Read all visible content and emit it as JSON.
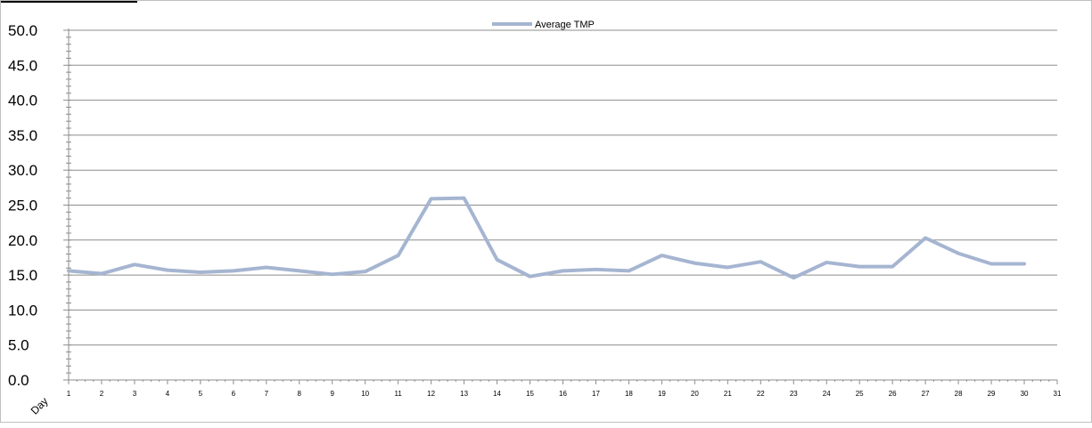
{
  "chart_data": {
    "type": "line",
    "title": "",
    "xlabel": "Day",
    "ylabel": "",
    "x": [
      1,
      2,
      3,
      4,
      5,
      6,
      7,
      8,
      9,
      10,
      11,
      12,
      13,
      14,
      15,
      16,
      17,
      18,
      19,
      20,
      21,
      22,
      23,
      24,
      25,
      26,
      27,
      28,
      29,
      30
    ],
    "x_ticks": [
      1,
      2,
      3,
      4,
      5,
      6,
      7,
      8,
      9,
      10,
      11,
      12,
      13,
      14,
      15,
      16,
      17,
      18,
      19,
      20,
      21,
      22,
      23,
      24,
      25,
      26,
      27,
      28,
      29,
      30,
      31
    ],
    "y_ticks": [
      "0.0",
      "5.0",
      "10.0",
      "15.0",
      "20.0",
      "25.0",
      "30.0",
      "35.0",
      "40.0",
      "45.0",
      "50.0"
    ],
    "xlim": [
      1,
      31
    ],
    "ylim": [
      0,
      50
    ],
    "grid": "horizontal",
    "legend_position": "top-center",
    "series": [
      {
        "name": "Average TMP",
        "color": "#a5b5d1",
        "values": [
          15.6,
          15.2,
          16.5,
          15.7,
          15.4,
          15.6,
          16.1,
          15.6,
          15.1,
          15.5,
          17.8,
          25.9,
          26.0,
          17.2,
          14.8,
          15.6,
          15.8,
          15.6,
          17.8,
          16.7,
          16.1,
          16.9,
          14.6,
          16.8,
          16.2,
          16.2,
          20.3,
          18.1,
          16.6,
          16.6
        ]
      }
    ]
  }
}
